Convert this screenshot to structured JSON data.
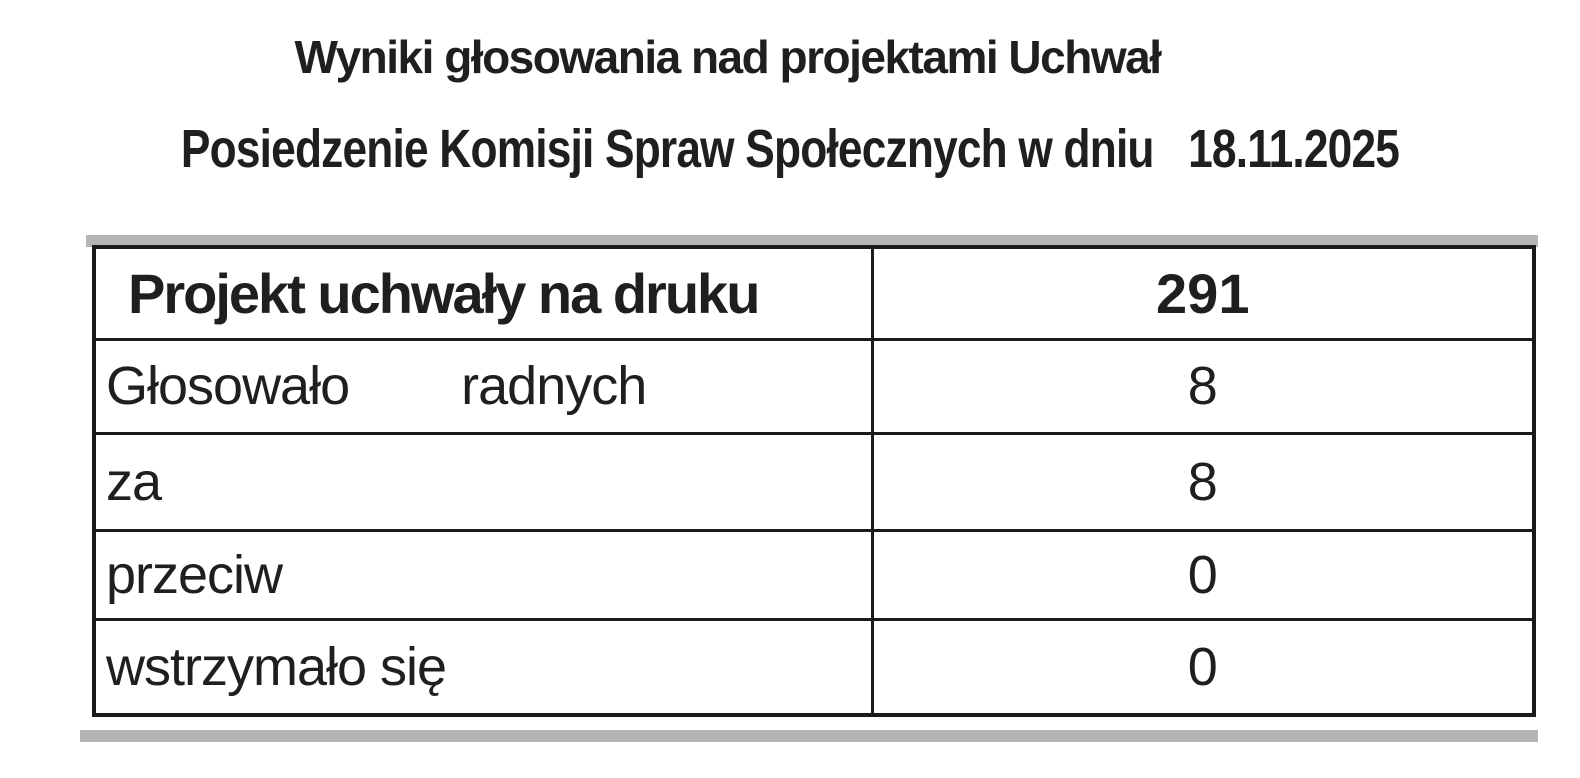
{
  "doc": {
    "title": "Wyniki głosowania nad projektami Uchwał",
    "subtitle": "Posiedzenie Komisji Spraw Społecznych w dniu   18.11.2025"
  },
  "table": {
    "header": {
      "label": "Projekt uchwały na druku",
      "value": "291"
    },
    "rows": [
      {
        "label": "Głosowało        radnych",
        "value": "8"
      },
      {
        "label": "za",
        "value": "8"
      },
      {
        "label": "przeciw",
        "value": "0"
      },
      {
        "label": "wstrzymało się",
        "value": "0"
      }
    ]
  },
  "colors": {
    "ink": "#1f1f1f",
    "border": "#1b1b1b",
    "scan_shadow": "#b4b4b4",
    "background": "#ffffff"
  }
}
